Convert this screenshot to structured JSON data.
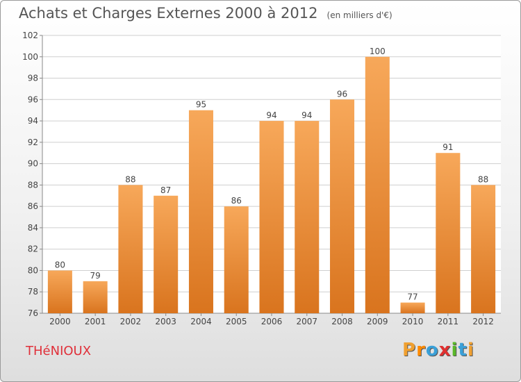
{
  "title": "Achats et Charges Externes 2000 à 2012",
  "unit": "(en milliers d'€)",
  "commune": "THéNIOUX",
  "logo": {
    "letters": [
      "P",
      "r",
      "o",
      "x",
      "i",
      "t",
      "i"
    ],
    "colors": [
      "#f0a030",
      "#ff8a00",
      "#3aa0d8",
      "#e03030",
      "#59b82a",
      "#3aa0d8",
      "#f0a030"
    ]
  },
  "colors": {
    "bar_light": "#f7a85a",
    "bar_dark": "#d9741e",
    "grid": "#cfcfcf",
    "text": "#444444"
  },
  "chart_data": {
    "type": "bar",
    "categories": [
      "2000",
      "2001",
      "2002",
      "2003",
      "2004",
      "2005",
      "2006",
      "2007",
      "2008",
      "2009",
      "2010",
      "2011",
      "2012"
    ],
    "values": [
      80,
      79,
      88,
      87,
      95,
      86,
      94,
      94,
      96,
      100,
      77,
      91,
      88
    ],
    "ylim": [
      76,
      102
    ],
    "yticks": [
      76,
      78,
      80,
      82,
      84,
      86,
      88,
      90,
      92,
      94,
      96,
      98,
      100,
      102
    ],
    "grid": true,
    "legend": "none"
  }
}
